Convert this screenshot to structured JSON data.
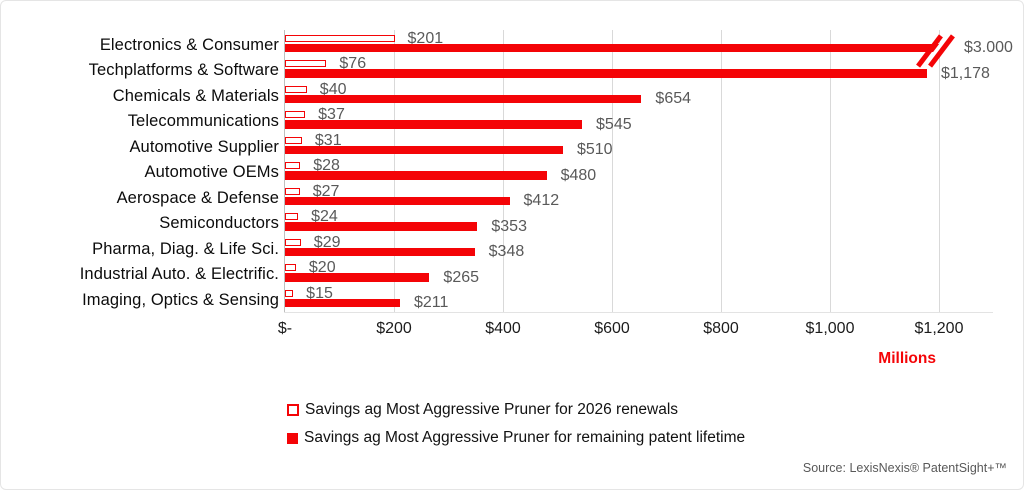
{
  "chart_data": {
    "type": "bar",
    "orientation": "horizontal",
    "title": "",
    "unit_label": "Millions",
    "grid": true,
    "legend_position": "bottom-left",
    "categories": [
      "Electronics & Consumer",
      "Techplatforms & Software",
      "Chemicals & Materials",
      "Telecommunications",
      "Automotive Supplier",
      "Automotive OEMs",
      "Aerospace & Defense",
      "Semiconductors",
      "Pharma, Diag. & Life Sci.",
      "Industrial Auto. & Electrific.",
      "Imaging, Optics & Sensing"
    ],
    "series": [
      {
        "name": "Savings ag Most Aggressive Pruner for 2026 renewals",
        "style": "hollow",
        "values": [
          201,
          76,
          40,
          37,
          31,
          28,
          27,
          24,
          29,
          20,
          15
        ],
        "display_values": [
          "$201",
          "$76",
          "$40",
          "$37",
          "$31",
          "$28",
          "$27",
          "$24",
          "$29",
          "$20",
          "$15"
        ]
      },
      {
        "name": "Savings ag Most Aggressive Pruner for remaining patent lifetime",
        "style": "solid",
        "values": [
          3000,
          1178,
          654,
          545,
          510,
          480,
          412,
          353,
          348,
          265,
          211
        ],
        "display_values": [
          "$3.000",
          "$1,178",
          "$654",
          "$545",
          "$510",
          "$480",
          "$412",
          "$353",
          "$348",
          "$265",
          "$211"
        ],
        "axis_break": {
          "bar_index": 0,
          "capped_at_value": 1200
        }
      }
    ],
    "x_axis": {
      "ticks": [
        {
          "label": "$-",
          "value": 0
        },
        {
          "label": "$200",
          "value": 200
        },
        {
          "label": "$400",
          "value": 400
        },
        {
          "label": "$600",
          "value": 600
        },
        {
          "label": "$800",
          "value": 800
        },
        {
          "label": "$1,000",
          "value": 1000
        },
        {
          "label": "$1,200",
          "value": 1200
        }
      ],
      "range": [
        0,
        1200
      ]
    }
  },
  "colors": {
    "bar_red": "#f40407",
    "gridline": "#d9d9d9",
    "axis_line": "#bfbfbf",
    "value_label": "#595959",
    "category_label": "#0c0c0c"
  },
  "source": {
    "text": "Source: LexisNexis® PatentSight+™"
  }
}
